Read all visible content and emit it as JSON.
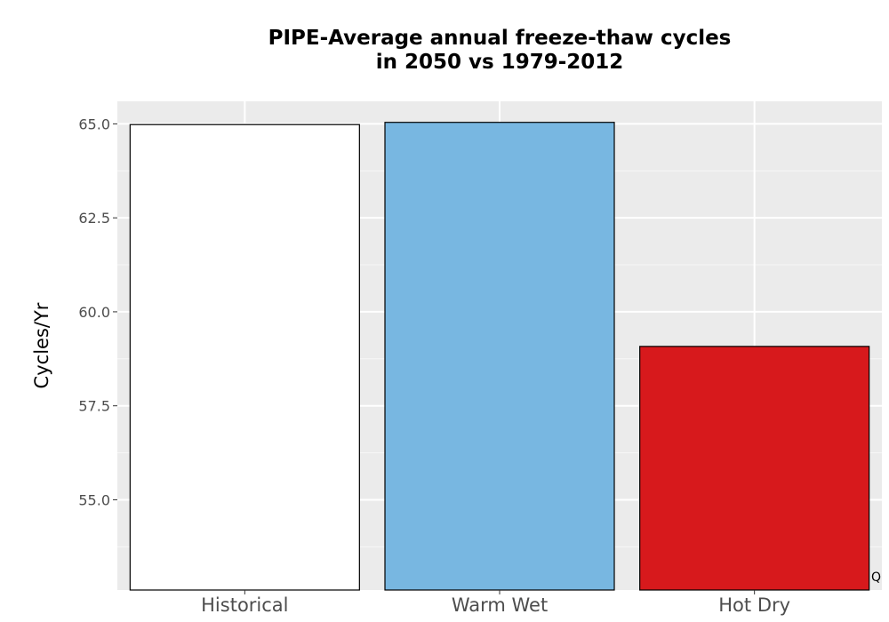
{
  "chart_data": {
    "type": "bar",
    "title_lines": [
      "PIPE-Average annual freeze-thaw cycles",
      "in 2050 vs 1979-2012"
    ],
    "xlabel": "",
    "ylabel": "Cycles/Yr",
    "categories": [
      "Historical",
      "Warm Wet",
      "Hot Dry"
    ],
    "values": [
      64.98,
      65.04,
      59.08
    ],
    "bar_colors": [
      "#ffffff",
      "#78b7e1",
      "#d7191c"
    ],
    "bar_outline": "#000000",
    "ylim": [
      52.6,
      65.6
    ],
    "yticks": [
      55.0,
      57.5,
      60.0,
      62.5,
      65.0
    ],
    "ytick_labels": [
      "55.0",
      "57.5",
      "60.0",
      "62.5",
      "65.0"
    ],
    "grid": true,
    "panel_background": "#ebebeb",
    "corner_note": "Q"
  }
}
